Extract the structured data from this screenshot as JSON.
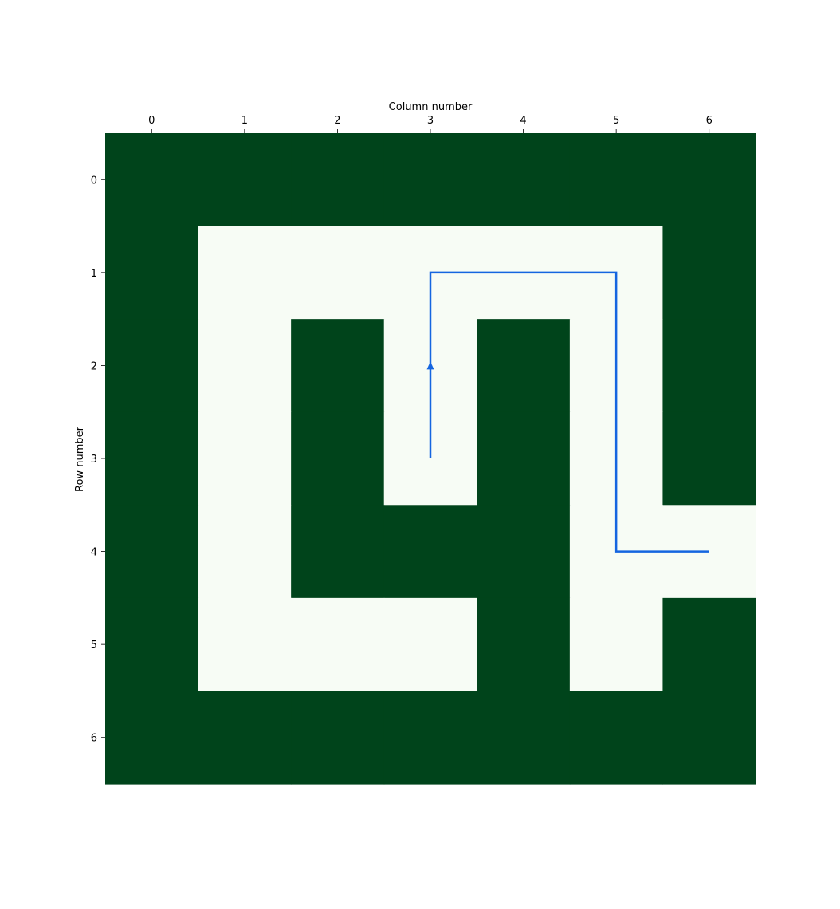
{
  "chart_data": {
    "type": "heatmap",
    "title": "",
    "xlabel": "Column number",
    "ylabel": "Row number",
    "x_axis_position": "top",
    "y_axis_direction": "top-to-bottom",
    "x_ticks": [
      "0",
      "1",
      "2",
      "3",
      "4",
      "5",
      "6"
    ],
    "y_ticks": [
      "0",
      "1",
      "2",
      "3",
      "4",
      "5",
      "6"
    ],
    "grid": false,
    "colors": {
      "wall": "#00441b",
      "open": "#f7fcf5",
      "path": "#1565e0"
    },
    "cells": [
      [
        1,
        1,
        1,
        1,
        1,
        1,
        1
      ],
      [
        1,
        0,
        0,
        0,
        0,
        0,
        1
      ],
      [
        1,
        0,
        1,
        0,
        1,
        0,
        1
      ],
      [
        1,
        0,
        1,
        0,
        1,
        0,
        1
      ],
      [
        1,
        0,
        1,
        1,
        1,
        0,
        0
      ],
      [
        1,
        0,
        0,
        0,
        1,
        0,
        1
      ],
      [
        1,
        1,
        1,
        1,
        1,
        1,
        1
      ]
    ],
    "path": [
      {
        "col": 3,
        "row": 3
      },
      {
        "col": 3,
        "row": 1
      },
      {
        "col": 5,
        "row": 1
      },
      {
        "col": 5,
        "row": 4
      },
      {
        "col": 6,
        "row": 4
      }
    ],
    "arrow_at": {
      "col": 3,
      "row": 2,
      "direction": "up"
    }
  }
}
